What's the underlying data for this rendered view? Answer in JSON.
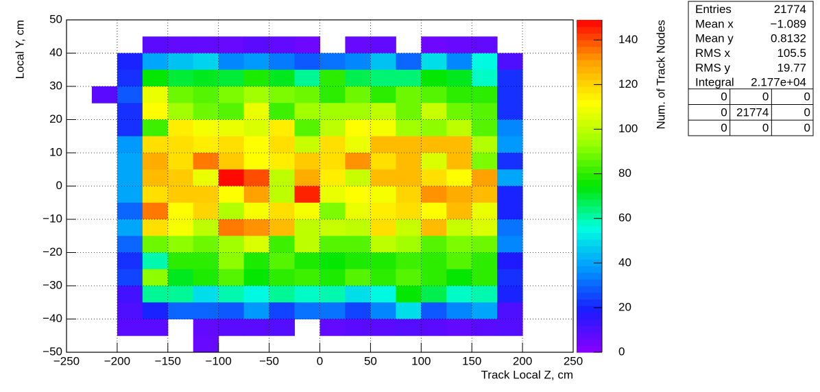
{
  "chart_data": {
    "type": "heatmap",
    "x_label": "Track Local Z, cm",
    "y_label": "Local Y, cm",
    "z_label": "Num. of Track Nodes",
    "xbins": [
      -250,
      -225,
      -200,
      -175,
      -150,
      -125,
      -100,
      -75,
      -50,
      -25,
      0,
      25,
      50,
      75,
      100,
      125,
      150,
      175,
      200,
      225,
      250
    ],
    "ybins": [
      50,
      45,
      40,
      35,
      30,
      25,
      20,
      15,
      10,
      5,
      0,
      -5,
      -10,
      -15,
      -20,
      -25,
      -30,
      -35,
      -40,
      -45,
      -50
    ],
    "z": [
      [
        null,
        null,
        null,
        null,
        null,
        null,
        null,
        null,
        null,
        null,
        null,
        null,
        null,
        null,
        null,
        null,
        null,
        null,
        null,
        null
      ],
      [
        null,
        null,
        null,
        8,
        7,
        7,
        6,
        8,
        7,
        5,
        null,
        6,
        7,
        null,
        5,
        6,
        7,
        null,
        null,
        null
      ],
      [
        null,
        null,
        20,
        40,
        45,
        48,
        35,
        38,
        33,
        28,
        32,
        35,
        45,
        30,
        50,
        35,
        55,
        10,
        null,
        null
      ],
      [
        null,
        null,
        22,
        75,
        70,
        72,
        70,
        78,
        72,
        62,
        80,
        68,
        65,
        65,
        75,
        72,
        58,
        22,
        null,
        null
      ],
      [
        null,
        8,
        28,
        108,
        88,
        85,
        90,
        95,
        90,
        88,
        80,
        88,
        80,
        88,
        85,
        80,
        80,
        22,
        null,
        null
      ],
      [
        null,
        null,
        22,
        112,
        95,
        88,
        85,
        108,
        82,
        95,
        95,
        95,
        100,
        88,
        102,
        88,
        85,
        22,
        null,
        null
      ],
      [
        null,
        null,
        22,
        82,
        115,
        110,
        108,
        105,
        115,
        85,
        100,
        112,
        110,
        95,
        92,
        100,
        85,
        35,
        null,
        null
      ],
      [
        null,
        null,
        38,
        118,
        118,
        115,
        118,
        112,
        118,
        102,
        118,
        108,
        125,
        125,
        125,
        125,
        98,
        38,
        null,
        null
      ],
      [
        null,
        null,
        40,
        128,
        118,
        135,
        122,
        112,
        115,
        122,
        118,
        132,
        118,
        125,
        105,
        125,
        90,
        22,
        null,
        null
      ],
      [
        null,
        null,
        40,
        125,
        122,
        108,
        148,
        140,
        100,
        128,
        115,
        102,
        125,
        125,
        118,
        112,
        130,
        40,
        null,
        null
      ],
      [
        null,
        null,
        40,
        118,
        122,
        122,
        112,
        130,
        100,
        145,
        108,
        112,
        110,
        120,
        132,
        128,
        125,
        20,
        null,
        null
      ],
      [
        null,
        null,
        30,
        135,
        112,
        120,
        98,
        110,
        118,
        110,
        90,
        108,
        115,
        118,
        112,
        125,
        108,
        20,
        null,
        null
      ],
      [
        null,
        null,
        40,
        118,
        110,
        100,
        135,
        132,
        125,
        100,
        102,
        100,
        118,
        102,
        125,
        102,
        105,
        32,
        null,
        null
      ],
      [
        null,
        null,
        30,
        88,
        92,
        88,
        95,
        105,
        82,
        100,
        85,
        85,
        100,
        95,
        85,
        90,
        88,
        35,
        null,
        null
      ],
      [
        null,
        null,
        22,
        60,
        80,
        80,
        92,
        78,
        85,
        78,
        75,
        78,
        78,
        82,
        80,
        85,
        80,
        18,
        null,
        null
      ],
      [
        null,
        null,
        25,
        92,
        72,
        78,
        85,
        75,
        80,
        82,
        78,
        85,
        80,
        85,
        80,
        75,
        80,
        22,
        null,
        null
      ],
      [
        null,
        null,
        12,
        62,
        62,
        50,
        60,
        55,
        62,
        58,
        60,
        50,
        55,
        75,
        68,
        58,
        60,
        20,
        null,
        null
      ],
      [
        null,
        null,
        10,
        20,
        30,
        30,
        28,
        38,
        25,
        32,
        32,
        25,
        35,
        50,
        28,
        35,
        40,
        10,
        null,
        null
      ],
      [
        null,
        null,
        8,
        8,
        null,
        7,
        8,
        8,
        9,
        null,
        7,
        8,
        8,
        9,
        8,
        7,
        8,
        9,
        null,
        null
      ],
      [
        null,
        null,
        null,
        null,
        null,
        6,
        null,
        null,
        null,
        null,
        null,
        null,
        null,
        null,
        null,
        null,
        null,
        null,
        null,
        null
      ]
    ],
    "xlim": [
      -250,
      250
    ],
    "ylim": [
      -50,
      50
    ],
    "zlim": [
      0,
      149
    ],
    "xticks": [
      {
        "value": -250,
        "label": "−250"
      },
      {
        "value": -200,
        "label": "−200"
      },
      {
        "value": -150,
        "label": "−150"
      },
      {
        "value": -100,
        "label": "−100"
      },
      {
        "value": -50,
        "label": "−50"
      },
      0,
      50,
      100,
      150,
      200,
      250
    ],
    "yticks": [
      {
        "value": -50,
        "label": "−50"
      },
      {
        "value": -40,
        "label": "−40"
      },
      {
        "value": -30,
        "label": "−30"
      },
      {
        "value": -20,
        "label": "−20"
      },
      {
        "value": -10,
        "label": "−10"
      },
      0,
      10,
      20,
      30,
      40,
      50
    ],
    "zticks": [
      0,
      20,
      40,
      60,
      80,
      100,
      120,
      140
    ],
    "grid": true,
    "colorscale": [
      "#8b00ff",
      "#1a1aff",
      "#0096ff",
      "#00ffe0",
      "#00e600",
      "#96ff00",
      "#ffff00",
      "#ffa000",
      "#ff0000"
    ],
    "stats": [
      {
        "label": "Entries",
        "value": "21774"
      },
      {
        "label": "Mean x",
        "value": "−1.089"
      },
      {
        "label": "Mean y",
        "value": "0.8132"
      },
      {
        "label": "RMS x",
        "value": "105.5"
      },
      {
        "label": "RMS y",
        "value": "19.77"
      },
      {
        "label": "Integral",
        "value": "2.177e+04"
      }
    ],
    "stats_table": [
      [
        "0",
        "0",
        "0"
      ],
      [
        "0",
        "21774",
        "0"
      ],
      [
        "0",
        "0",
        "0"
      ]
    ]
  }
}
